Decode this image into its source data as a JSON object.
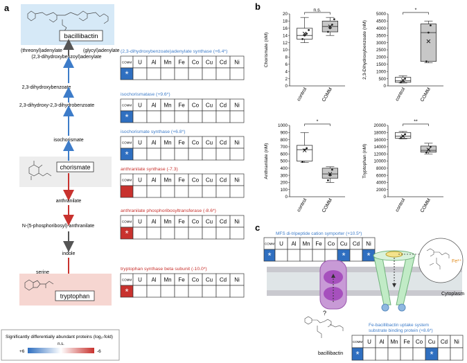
{
  "panels": {
    "a": "a",
    "b": "b",
    "c": "c"
  },
  "pathway": {
    "bacillibactin": "bacillibactin",
    "threonyl": "(threonyl)adenylate",
    "glycyl": "(glycyl)adenylate",
    "dhb_adenylate": "(2,3-dihydroxybenzoyl)adenylate",
    "dhb": "2,3-dihydroxybenzoate",
    "dihydro": "2,3-dihydroxy-2,3-dihydrobenzoate",
    "isochorismate": "isochorismate",
    "chorismate": "chorismate",
    "anthranilate": "anthranilate",
    "n5p": "N-(5-phosphoribosyl)-anthranilate",
    "indole": "indole",
    "serine": "serine",
    "tryptophan": "tryptophan"
  },
  "grid_columns": [
    "COMM",
    "U",
    "Al",
    "Mn",
    "Fe",
    "Co",
    "Cu",
    "Cd",
    "Ni"
  ],
  "enzymes": [
    {
      "label": "(2,3-dihydroxybenzoate)adenylate synthase (+6.4*)",
      "color": "#3d7cc9",
      "comm_fill": "#2f6fc0",
      "star": "*"
    },
    {
      "label": "isochorismatase (+9.6*)",
      "color": "#3d7cc9",
      "comm_fill": "#2f6fc0",
      "star": "*"
    },
    {
      "label": "isochorismate synthase (+6.8*)",
      "color": "#3d7cc9",
      "comm_fill": "#2f6fc0",
      "star": "*"
    },
    {
      "label": "anthranilate synthase (-7.3)",
      "color": "#c8322e",
      "comm_fill": "#c8322e",
      "star": ""
    },
    {
      "label": "anthranilate phosphoribosyltransferase (-8.6*)",
      "color": "#c8322e",
      "comm_fill": "#c8322e",
      "star": "*"
    },
    {
      "label": "tryptophan synthase beta subunit (-10.0*)",
      "color": "#c8322e",
      "comm_fill": "#c8322e",
      "star": "*"
    }
  ],
  "legend": {
    "title": "Significantly differentially abundant proteins (log₂-fold)",
    "ns": "n.s.",
    "plus": "+6",
    "minus": "-6"
  },
  "chart_data": [
    {
      "type": "box",
      "ylabel": "Chorismate (nM)",
      "categories": [
        "control",
        "COMM"
      ],
      "ylim": [
        0,
        20
      ],
      "yticks": [
        0,
        2,
        4,
        6,
        8,
        10,
        12,
        14,
        16,
        18,
        20
      ],
      "annotation": "n.s.",
      "boxes": [
        {
          "min": 12,
          "q1": 13,
          "median": 14,
          "q3": 16,
          "max": 19,
          "mean": 14.5,
          "points": [
            13,
            14,
            14.5,
            15.5
          ]
        },
        {
          "min": 14,
          "q1": 15,
          "median": 16.5,
          "q3": 18,
          "max": 19,
          "mean": 16.5,
          "points": [
            15,
            16,
            17,
            18.5
          ]
        }
      ]
    },
    {
      "type": "box",
      "ylabel": "2,3-Dihydroxybenzoate (nM)",
      "categories": [
        "control",
        "COMM"
      ],
      "ylim": [
        0,
        5000
      ],
      "yticks": [
        0,
        500,
        1000,
        1500,
        2000,
        2500,
        3000,
        3500,
        4000,
        4500,
        5000
      ],
      "annotation": "*",
      "boxes": [
        {
          "min": 200,
          "q1": 250,
          "median": 350,
          "q3": 600,
          "max": 700,
          "mean": 400,
          "points": [
            250,
            350,
            500
          ]
        },
        {
          "min": 1600,
          "q1": 1700,
          "median": 3700,
          "q3": 4300,
          "max": 4500,
          "mean": 3100,
          "points": [
            1700,
            3700,
            4200
          ]
        }
      ]
    },
    {
      "type": "box",
      "ylabel": "Anthranilate (nM)",
      "categories": [
        "control",
        "COMM"
      ],
      "ylim": [
        0,
        1000
      ],
      "yticks": [
        0,
        100,
        200,
        300,
        400,
        500,
        600,
        700,
        800,
        900,
        1000
      ],
      "annotation": "*",
      "boxes": [
        {
          "min": 480,
          "q1": 500,
          "median": 660,
          "q3": 720,
          "max": 900,
          "mean": 650,
          "points": [
            490,
            660,
            680
          ]
        },
        {
          "min": 200,
          "q1": 260,
          "median": 320,
          "q3": 400,
          "max": 420,
          "mean": 320,
          "points": [
            230,
            300,
            380
          ]
        }
      ]
    },
    {
      "type": "box",
      "ylabel": "Tryptophan (nM)",
      "categories": [
        "control",
        "COMM"
      ],
      "ylim": [
        0,
        20000
      ],
      "yticks": [
        0,
        2000,
        4000,
        6000,
        8000,
        10000,
        12000,
        14000,
        16000,
        18000,
        20000
      ],
      "annotation": "**",
      "boxes": [
        {
          "min": 16200,
          "q1": 16400,
          "median": 17000,
          "q3": 18000,
          "max": 18300,
          "mean": 17000,
          "points": [
            16500,
            17000,
            17500
          ]
        },
        {
          "min": 12000,
          "q1": 12500,
          "median": 13000,
          "q3": 14200,
          "max": 15000,
          "mean": 13200,
          "points": [
            12400,
            13200,
            14000
          ]
        }
      ]
    }
  ],
  "panel_c": {
    "mfs": {
      "label": "MFS di-tripeptide cation symporter (+10.5*)",
      "stars": [
        true,
        false,
        false,
        false,
        false,
        false,
        true,
        false,
        true
      ]
    },
    "fe_uptake": {
      "label_line1": "Fe-bacillibactin uptake system",
      "label_line2": "substrate binding protein (+8.6*)",
      "stars": [
        true,
        false,
        false,
        false,
        false,
        false,
        true,
        false,
        false
      ]
    },
    "cytoplasm": "Cytoplasm",
    "bacillibactin": "bacillibactin",
    "question": "?",
    "fe3": "Fe³⁺",
    "star": "*"
  },
  "colors": {
    "blue": "#2f6fc0",
    "red": "#c8322e",
    "arrow_blue": "#3d7cc9",
    "arrow_red": "#c8322e",
    "arrow_grey": "#555555"
  }
}
